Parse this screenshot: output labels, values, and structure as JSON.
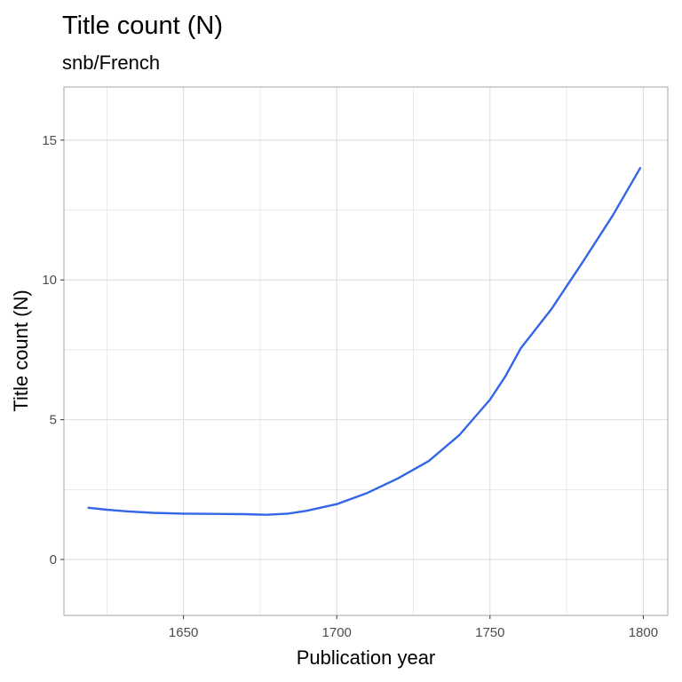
{
  "chart_data": {
    "type": "line",
    "title": "Title count (N)",
    "subtitle": "snb/French",
    "xlabel": "Publication year",
    "ylabel": "Title count (N)",
    "xlim": [
      1611,
      1808
    ],
    "ylim": [
      -2.0,
      16.9
    ],
    "x_ticks": [
      1650,
      1700,
      1750,
      1800
    ],
    "y_ticks": [
      0,
      5,
      10,
      15
    ],
    "x_minor": [
      1625,
      1675,
      1725,
      1775
    ],
    "y_minor": [
      -2.5,
      2.5,
      7.5,
      12.5
    ],
    "grid": true,
    "line_color": "#3366e6",
    "grid_color": "#dedede",
    "series": [
      {
        "points": [
          [
            1619,
            1.85
          ],
          [
            1625,
            1.78
          ],
          [
            1632,
            1.72
          ],
          [
            1640,
            1.67
          ],
          [
            1650,
            1.64
          ],
          [
            1660,
            1.63
          ],
          [
            1670,
            1.62
          ],
          [
            1677,
            1.6
          ],
          [
            1684,
            1.64
          ],
          [
            1690,
            1.74
          ],
          [
            1700,
            1.98
          ],
          [
            1710,
            2.38
          ],
          [
            1720,
            2.9
          ],
          [
            1730,
            3.52
          ],
          [
            1740,
            4.45
          ],
          [
            1750,
            5.72
          ],
          [
            1755,
            6.55
          ],
          [
            1760,
            7.55
          ],
          [
            1770,
            8.95
          ],
          [
            1780,
            10.6
          ],
          [
            1790,
            12.3
          ],
          [
            1799,
            14.0
          ]
        ]
      }
    ]
  }
}
